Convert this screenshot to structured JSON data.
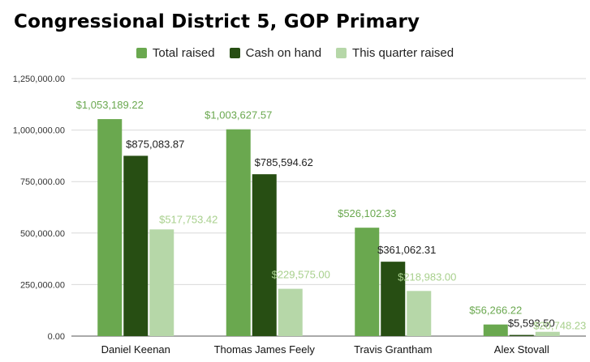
{
  "chart_data": {
    "type": "bar",
    "title": "Congressional District 5, GOP Primary",
    "categories": [
      "Daniel Keenan",
      "Thomas James Feely",
      "Travis Grantham",
      "Alex Stovall"
    ],
    "series": [
      {
        "name": "Total raised",
        "color": "#6aa84f",
        "label_color": "#6aa84f",
        "values": [
          1053189.22,
          1003627.57,
          526102.33,
          56266.22
        ],
        "labels": [
          "$1,053,189.22",
          "$1,003,627.57",
          "$526,102.33",
          "$56,266.22"
        ]
      },
      {
        "name": "Cash on hand",
        "color": "#274e13",
        "label_color": "#1f1f1f",
        "values": [
          875083.87,
          785594.62,
          361062.31,
          5593.5
        ],
        "labels": [
          "$875,083.87",
          "$785,594.62",
          "$361,062.31",
          "$5,593.50"
        ]
      },
      {
        "name": "This quarter raised",
        "color": "#b6d7a8",
        "label_color": "#a8d08d",
        "values": [
          517753.42,
          229575.0,
          218983.0,
          20748.23
        ],
        "labels": [
          "$517,753.42",
          "$229,575.00",
          "$218,983.00",
          "$20,748.23"
        ]
      }
    ],
    "yticks": [
      0,
      250000,
      500000,
      750000,
      1000000,
      1250000
    ],
    "ytick_labels": [
      "0.00",
      "250,000.00",
      "500,000.00",
      "750,000.00",
      "1,000,000.00",
      "1,250,000.00"
    ],
    "ylim": [
      0,
      1250000
    ],
    "grid": true,
    "legend": "top-center"
  }
}
